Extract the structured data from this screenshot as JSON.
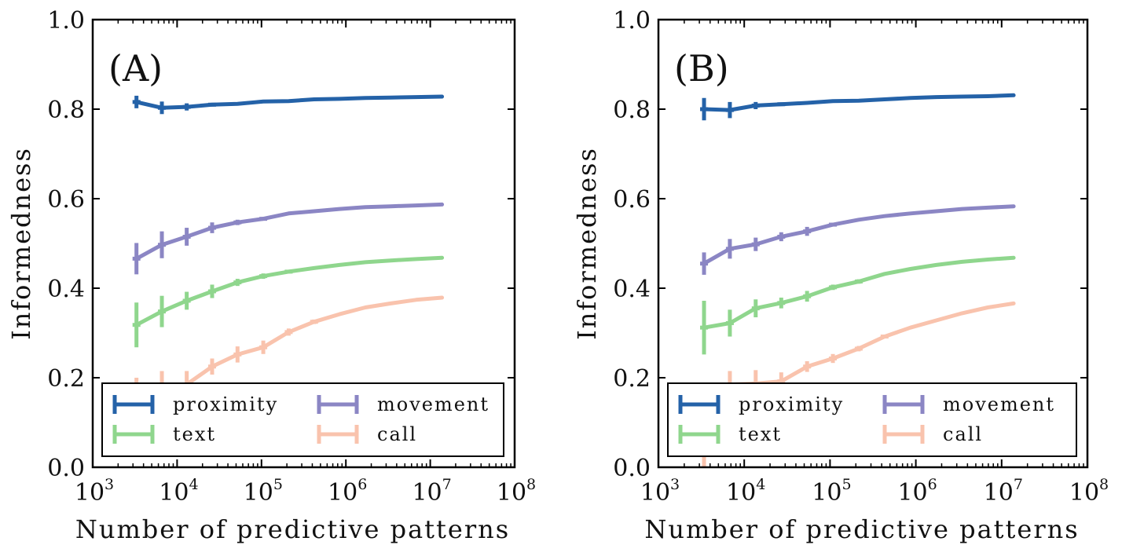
{
  "chart_data": [
    {
      "type": "line",
      "panel_label": "(A)",
      "xlabel": "Number of predictive patterns",
      "ylabel": "Informedness",
      "xscale": "log",
      "xlim": [
        1000,
        100000000
      ],
      "ylim": [
        0.0,
        1.0
      ],
      "x_ticks": [
        {
          "base": "10",
          "exp": "3"
        },
        {
          "base": "10",
          "exp": "4"
        },
        {
          "base": "10",
          "exp": "5"
        },
        {
          "base": "10",
          "exp": "6"
        },
        {
          "base": "10",
          "exp": "7"
        },
        {
          "base": "10",
          "exp": "8"
        }
      ],
      "y_ticks": [
        "0.0",
        "0.2",
        "0.4",
        "0.6",
        "0.8",
        "1.0"
      ],
      "legend_position": "bottom",
      "grid": false,
      "series": [
        {
          "name": "proximity",
          "color": "#2462a8",
          "x": [
            3300,
            6600,
            13000,
            26000,
            52000,
            105000,
            210000,
            420000,
            840000,
            1700000,
            3400000,
            6800000,
            13800000
          ],
          "y": [
            0.816,
            0.803,
            0.805,
            0.81,
            0.812,
            0.817,
            0.818,
            0.822,
            0.823,
            0.825,
            0.826,
            0.827,
            0.828
          ],
          "err": [
            0.014,
            0.014,
            0.008,
            0.004,
            0.003,
            0.002,
            0.002,
            0.001,
            0.001,
            0.001,
            0.001,
            0.001,
            0.001
          ]
        },
        {
          "name": "movement",
          "color": "#8b86c4",
          "x": [
            3300,
            6600,
            13000,
            26000,
            52000,
            105000,
            210000,
            420000,
            840000,
            1700000,
            3400000,
            6800000,
            13800000
          ],
          "y": [
            0.466,
            0.497,
            0.515,
            0.535,
            0.547,
            0.555,
            0.567,
            0.572,
            0.577,
            0.581,
            0.583,
            0.585,
            0.587
          ],
          "err": [
            0.035,
            0.03,
            0.02,
            0.012,
            0.006,
            0.004,
            0.003,
            0.002,
            0.002,
            0.001,
            0.001,
            0.001,
            0.001
          ]
        },
        {
          "name": "text",
          "color": "#8fd68d",
          "x": [
            3300,
            6600,
            13000,
            26000,
            52000,
            105000,
            210000,
            420000,
            840000,
            1700000,
            3400000,
            6800000,
            13800000
          ],
          "y": [
            0.318,
            0.348,
            0.372,
            0.393,
            0.413,
            0.427,
            0.437,
            0.445,
            0.452,
            0.458,
            0.462,
            0.465,
            0.468
          ],
          "err": [
            0.05,
            0.035,
            0.02,
            0.015,
            0.008,
            0.006,
            0.004,
            0.003,
            0.002,
            0.002,
            0.001,
            0.001,
            0.001
          ]
        },
        {
          "name": "call",
          "color": "#f9c3ad",
          "x": [
            3300,
            6600,
            13000,
            26000,
            52000,
            105000,
            210000,
            420000,
            840000,
            1700000,
            3400000,
            6800000,
            13800000
          ],
          "y": [
            0.155,
            0.175,
            0.185,
            0.225,
            0.252,
            0.268,
            0.302,
            0.325,
            0.342,
            0.357,
            0.366,
            0.374,
            0.379
          ],
          "err": [
            0.045,
            0.04,
            0.03,
            0.018,
            0.018,
            0.015,
            0.008,
            0.005,
            0.003,
            0.002,
            0.002,
            0.001,
            0.001
          ]
        }
      ]
    },
    {
      "type": "line",
      "panel_label": "(B)",
      "xlabel": "Number of predictive patterns",
      "ylabel": "Informedness",
      "xscale": "log",
      "xlim": [
        1000,
        100000000
      ],
      "ylim": [
        0.0,
        1.0
      ],
      "x_ticks": [
        {
          "base": "10",
          "exp": "3"
        },
        {
          "base": "10",
          "exp": "4"
        },
        {
          "base": "10",
          "exp": "5"
        },
        {
          "base": "10",
          "exp": "6"
        },
        {
          "base": "10",
          "exp": "7"
        },
        {
          "base": "10",
          "exp": "8"
        }
      ],
      "y_ticks": [
        "0.0",
        "0.2",
        "0.4",
        "0.6",
        "0.8",
        "1.0"
      ],
      "legend_position": "bottom",
      "grid": false,
      "series": [
        {
          "name": "proximity",
          "color": "#2462a8",
          "x": [
            3400,
            6800,
            13600,
            27000,
            54000,
            108000,
            216000,
            432000,
            864000,
            1730000,
            3460000,
            6900000,
            13800000
          ],
          "y": [
            0.8,
            0.798,
            0.808,
            0.811,
            0.814,
            0.818,
            0.819,
            0.822,
            0.825,
            0.827,
            0.828,
            0.829,
            0.831
          ],
          "err": [
            0.025,
            0.018,
            0.008,
            0.004,
            0.003,
            0.002,
            0.002,
            0.001,
            0.001,
            0.001,
            0.001,
            0.001,
            0.001
          ]
        },
        {
          "name": "movement",
          "color": "#8b86c4",
          "x": [
            3400,
            6800,
            13600,
            27000,
            54000,
            108000,
            216000,
            432000,
            864000,
            1730000,
            3460000,
            6900000,
            13800000
          ],
          "y": [
            0.455,
            0.488,
            0.498,
            0.515,
            0.527,
            0.542,
            0.553,
            0.561,
            0.567,
            0.572,
            0.577,
            0.58,
            0.583
          ],
          "err": [
            0.025,
            0.022,
            0.015,
            0.01,
            0.01,
            0.004,
            0.003,
            0.002,
            0.002,
            0.001,
            0.001,
            0.001,
            0.001
          ]
        },
        {
          "name": "text",
          "color": "#8fd68d",
          "x": [
            3400,
            6800,
            13600,
            27000,
            54000,
            108000,
            216000,
            432000,
            864000,
            1730000,
            3460000,
            6900000,
            13800000
          ],
          "y": [
            0.312,
            0.322,
            0.355,
            0.367,
            0.382,
            0.402,
            0.415,
            0.432,
            0.443,
            0.452,
            0.459,
            0.464,
            0.468
          ],
          "err": [
            0.06,
            0.03,
            0.02,
            0.012,
            0.012,
            0.006,
            0.005,
            0.003,
            0.002,
            0.002,
            0.001,
            0.001,
            0.001
          ]
        },
        {
          "name": "call",
          "color": "#f9c3ad",
          "x": [
            3400,
            6800,
            13600,
            27000,
            54000,
            108000,
            216000,
            432000,
            864000,
            1730000,
            3460000,
            6900000,
            13800000
          ],
          "y": [
            0.03,
            0.185,
            0.187,
            0.192,
            0.225,
            0.243,
            0.265,
            0.292,
            0.312,
            0.328,
            0.344,
            0.357,
            0.366
          ],
          "err": [
            0.035,
            0.03,
            0.03,
            0.02,
            0.012,
            0.01,
            0.006,
            0.004,
            0.003,
            0.002,
            0.002,
            0.001,
            0.001
          ]
        }
      ]
    }
  ]
}
